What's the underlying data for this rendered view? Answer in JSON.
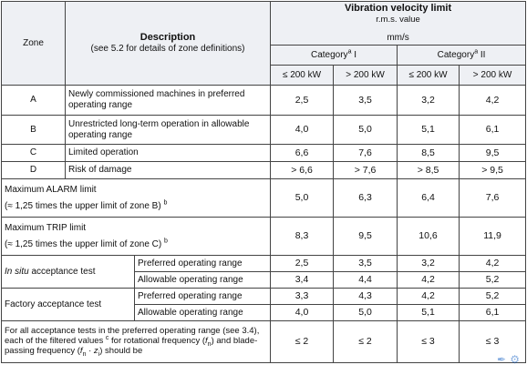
{
  "header": {
    "zone": "Zone",
    "description_title": "Description",
    "description_note": "(see 5.2 for details of zone definitions)",
    "limit_title": "Vibration velocity limit",
    "limit_sub": "r.m.s. value",
    "unit": "mm/s",
    "cat1_label": "Category",
    "cat1_sup": "a",
    "cat1_num": "I",
    "cat2_label": "Category",
    "cat2_sup": "a",
    "cat2_num": "II",
    "col1": "≤ 200 kW",
    "col2": "> 200 kW",
    "col3": "≤ 200 kW",
    "col4": "> 200 kW"
  },
  "zones": [
    {
      "zone": "A",
      "description": "Newly commissioned machines in preferred operating range",
      "values": [
        "2,5",
        "3,5",
        "3,2",
        "4,2"
      ]
    },
    {
      "zone": "B",
      "description": "Unrestricted long-term operation in allowable operating range",
      "values": [
        "4,0",
        "5,0",
        "5,1",
        "6,1"
      ]
    },
    {
      "zone": "C",
      "description": "Limited operation",
      "values": [
        "6,6",
        "7,6",
        "8,5",
        "9,5"
      ]
    },
    {
      "zone": "D",
      "description": "Risk of damage",
      "values": [
        "> 6,6",
        "> 7,6",
        "> 8,5",
        "> 9,5"
      ]
    }
  ],
  "alarm": {
    "label": "Maximum ALARM limit",
    "note": "(≈ 1,25 times the upper limit of zone B)",
    "note_sup": "b",
    "values": [
      "5,0",
      "6,3",
      "6,4",
      "7,6"
    ]
  },
  "trip": {
    "label": "Maximum TRIP limit",
    "note": "(≈ 1,25 times the upper limit of zone C)",
    "note_sup": "b",
    "values": [
      "8,3",
      "9,5",
      "10,6",
      "11,9"
    ]
  },
  "insitu": {
    "label_italic": "In situ",
    "label_rest": " acceptance test",
    "rows": [
      {
        "range": "Preferred operating range",
        "values": [
          "2,5",
          "3,5",
          "3,2",
          "4,2"
        ]
      },
      {
        "range": "Allowable operating range",
        "values": [
          "3,4",
          "4,4",
          "4,2",
          "5,2"
        ]
      }
    ]
  },
  "factory": {
    "label": "Factory acceptance test",
    "rows": [
      {
        "range": "Preferred operating range",
        "values": [
          "3,3",
          "4,3",
          "4,2",
          "5,2"
        ]
      },
      {
        "range": "Allowable operating range",
        "values": [
          "4,0",
          "5,0",
          "5,1",
          "6,1"
        ]
      }
    ]
  },
  "filtered": {
    "text_1": "For all acceptance tests in the preferred operating range (see 3.4), each of the filtered values",
    "text_sup": "c",
    "text_2": "for rotational frequency",
    "text_3": "and blade-passing frequency",
    "text_4": "should be",
    "fn": "f",
    "fn_sub": "n",
    "fzn": "f",
    "fzn_sub": "n",
    "z": "z",
    "z_sub": "i",
    "values": [
      "≤ 2",
      "≤ 2",
      "≤ 3",
      "≤ 3"
    ]
  },
  "watermark": "✒ ⚙"
}
